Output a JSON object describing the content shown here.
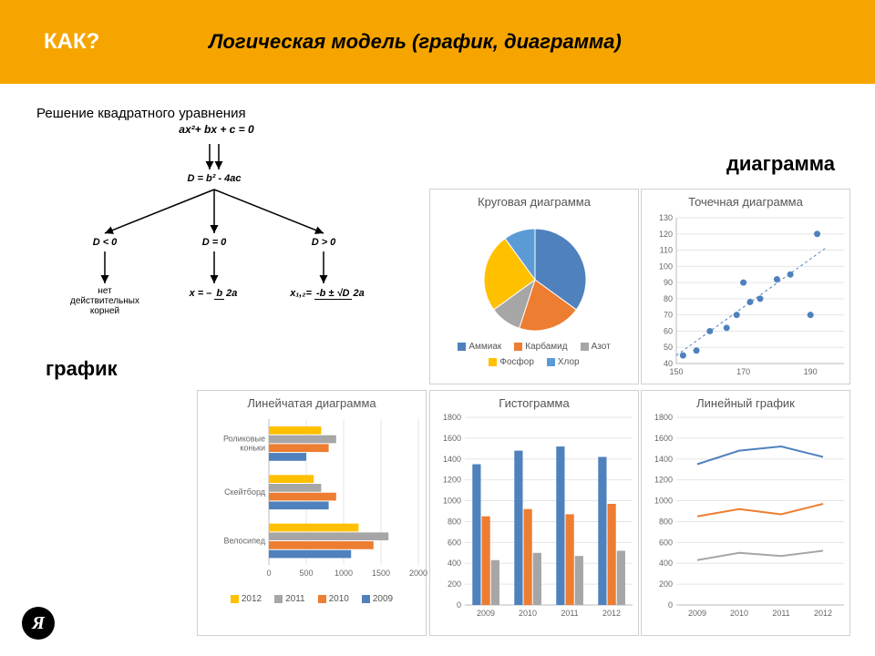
{
  "header": {
    "q": "КАК?",
    "subtitle": "Логическая модель (график, диаграмма)"
  },
  "labels": {
    "diagram": "диаграмма",
    "graph": "график"
  },
  "flowchart": {
    "title": "Решение квадратного уравнения",
    "equation": "ax²+ bx + c = 0",
    "discriminant": "D = b² - 4ac",
    "cases": {
      "neg": "D < 0",
      "zero": "D = 0",
      "pos": "D > 0"
    },
    "results": {
      "neg": "нет\nдействительных\nкорней",
      "zero_prefix": "x = –",
      "zero_num": "b",
      "zero_den": "2a",
      "pos_prefix": "x₁,₂=",
      "pos_num": "-b ± √D",
      "pos_den": "2a"
    }
  },
  "pie": {
    "title": "Круговая диаграмма",
    "slices": [
      {
        "label": "Аммиак",
        "value": 35,
        "color": "#4f81bd"
      },
      {
        "label": "Карбамид",
        "value": 20,
        "color": "#ed7d31"
      },
      {
        "label": "Азот",
        "value": 10,
        "color": "#a6a6a6"
      },
      {
        "label": "Фосфор",
        "value": 25,
        "color": "#ffc000"
      },
      {
        "label": "Хлор",
        "value": 10,
        "color": "#5b9bd5"
      }
    ]
  },
  "scatter": {
    "title": "Точечная диаграмма",
    "xlim": [
      150,
      200
    ],
    "xticks": [
      150,
      170,
      190
    ],
    "ylim": [
      40,
      130
    ],
    "yticks": [
      40,
      50,
      60,
      70,
      80,
      90,
      100,
      110,
      120,
      130
    ],
    "points": [
      [
        152,
        45
      ],
      [
        156,
        48
      ],
      [
        160,
        60
      ],
      [
        165,
        62
      ],
      [
        168,
        70
      ],
      [
        170,
        90
      ],
      [
        172,
        78
      ],
      [
        175,
        80
      ],
      [
        180,
        92
      ],
      [
        184,
        95
      ],
      [
        190,
        70
      ],
      [
        192,
        120
      ]
    ],
    "color": "#4f81bd",
    "trend": {
      "x1": 150,
      "y1": 45,
      "x2": 195,
      "y2": 112,
      "color": "#4f81bd"
    }
  },
  "barh": {
    "title": "Линейчатая диаграмма",
    "categories": [
      "Роликовые коньки",
      "Скейтборд",
      "Велосипед"
    ],
    "series": [
      {
        "name": "2012",
        "color": "#ffc000",
        "data": [
          700,
          600,
          1200
        ]
      },
      {
        "name": "2011",
        "color": "#a6a6a6",
        "data": [
          900,
          700,
          1600
        ]
      },
      {
        "name": "2010",
        "color": "#ed7d31",
        "data": [
          800,
          900,
          1400
        ]
      },
      {
        "name": "2009",
        "color": "#4f81bd",
        "data": [
          500,
          800,
          1100
        ]
      }
    ],
    "xlim": [
      0,
      2000
    ],
    "xticks": [
      0,
      500,
      1000,
      1500,
      2000
    ]
  },
  "barv": {
    "title": "Гистограмма",
    "categories": [
      "2009",
      "2010",
      "2011",
      "2012"
    ],
    "series": [
      {
        "color": "#4f81bd",
        "data": [
          1350,
          1480,
          1520,
          1420
        ]
      },
      {
        "color": "#ed7d31",
        "data": [
          850,
          920,
          870,
          970
        ]
      },
      {
        "color": "#a6a6a6",
        "data": [
          430,
          500,
          470,
          520
        ]
      }
    ],
    "ylim": [
      0,
      1800
    ],
    "yticks": [
      0,
      200,
      400,
      600,
      800,
      1000,
      1200,
      1400,
      1600,
      1800
    ]
  },
  "line": {
    "title": "Линейный график",
    "categories": [
      "2009",
      "2010",
      "2011",
      "2012"
    ],
    "series": [
      {
        "color": "#4f81bd",
        "data": [
          1350,
          1480,
          1520,
          1420
        ]
      },
      {
        "color": "#ed7d31",
        "data": [
          850,
          920,
          870,
          970
        ]
      },
      {
        "color": "#a6a6a6",
        "data": [
          430,
          500,
          470,
          520
        ]
      }
    ],
    "ylim": [
      0,
      1800
    ],
    "yticks": [
      0,
      200,
      400,
      600,
      800,
      1000,
      1200,
      1400,
      1600,
      1800
    ]
  },
  "legend_years": [
    "2012",
    "2011",
    "2010",
    "2009"
  ],
  "legend_colors": [
    "#ffc000",
    "#a6a6a6",
    "#ed7d31",
    "#4f81bd"
  ],
  "logo": "Я"
}
